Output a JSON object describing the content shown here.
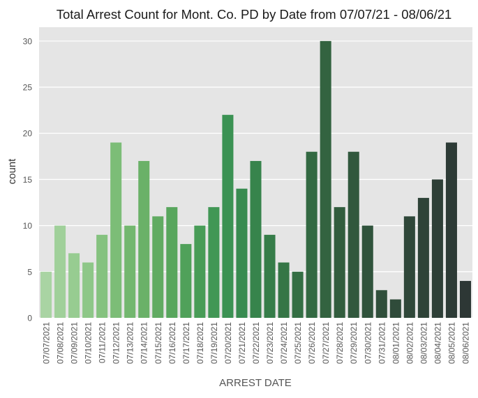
{
  "chart_data": {
    "type": "bar",
    "title": "Total Arrest Count for Mont. Co. PD by Date from 07/07/21 - 08/06/21",
    "xlabel": "ARREST DATE",
    "ylabel": "count",
    "ylim": [
      0,
      31.5
    ],
    "yticks": [
      0,
      5,
      10,
      15,
      20,
      25,
      30
    ],
    "grid": true,
    "categories": [
      "07/07/2021",
      "07/08/2021",
      "07/09/2021",
      "07/10/2021",
      "07/11/2021",
      "07/12/2021",
      "07/13/2021",
      "07/14/2021",
      "07/15/2021",
      "07/16/2021",
      "07/17/2021",
      "07/18/2021",
      "07/19/2021",
      "07/20/2021",
      "07/21/2021",
      "07/22/2021",
      "07/23/2021",
      "07/24/2021",
      "07/25/2021",
      "07/26/2021",
      "07/27/2021",
      "07/28/2021",
      "07/29/2021",
      "07/30/2021",
      "07/31/2021",
      "08/01/2021",
      "08/02/2021",
      "08/03/2021",
      "08/04/2021",
      "08/05/2021",
      "08/06/2021"
    ],
    "values": [
      5,
      10,
      7,
      6,
      9,
      19,
      10,
      17,
      11,
      12,
      8,
      10,
      12,
      22,
      14,
      17,
      9,
      6,
      5,
      18,
      30,
      12,
      18,
      10,
      3,
      2,
      11,
      13,
      15,
      19,
      4
    ],
    "colors": [
      "#a9d4a3",
      "#a0d09a",
      "#97cc91",
      "#8ec788",
      "#85c27f",
      "#7cbd77",
      "#73b76f",
      "#6ab168",
      "#61ab62",
      "#58a65d",
      "#50a15a",
      "#489c57",
      "#419755",
      "#3b9253",
      "#388b50",
      "#37844c",
      "#367d49",
      "#357646",
      "#346f44",
      "#336942",
      "#336340",
      "#325d3e",
      "#31583d",
      "#30533c",
      "#304f3b",
      "#2f4b3a",
      "#2f4739",
      "#2e4338",
      "#2e3f37",
      "#2d3b36",
      "#2d3735"
    ],
    "background": "#e5e5e5",
    "grid_color": "#ffffff"
  }
}
